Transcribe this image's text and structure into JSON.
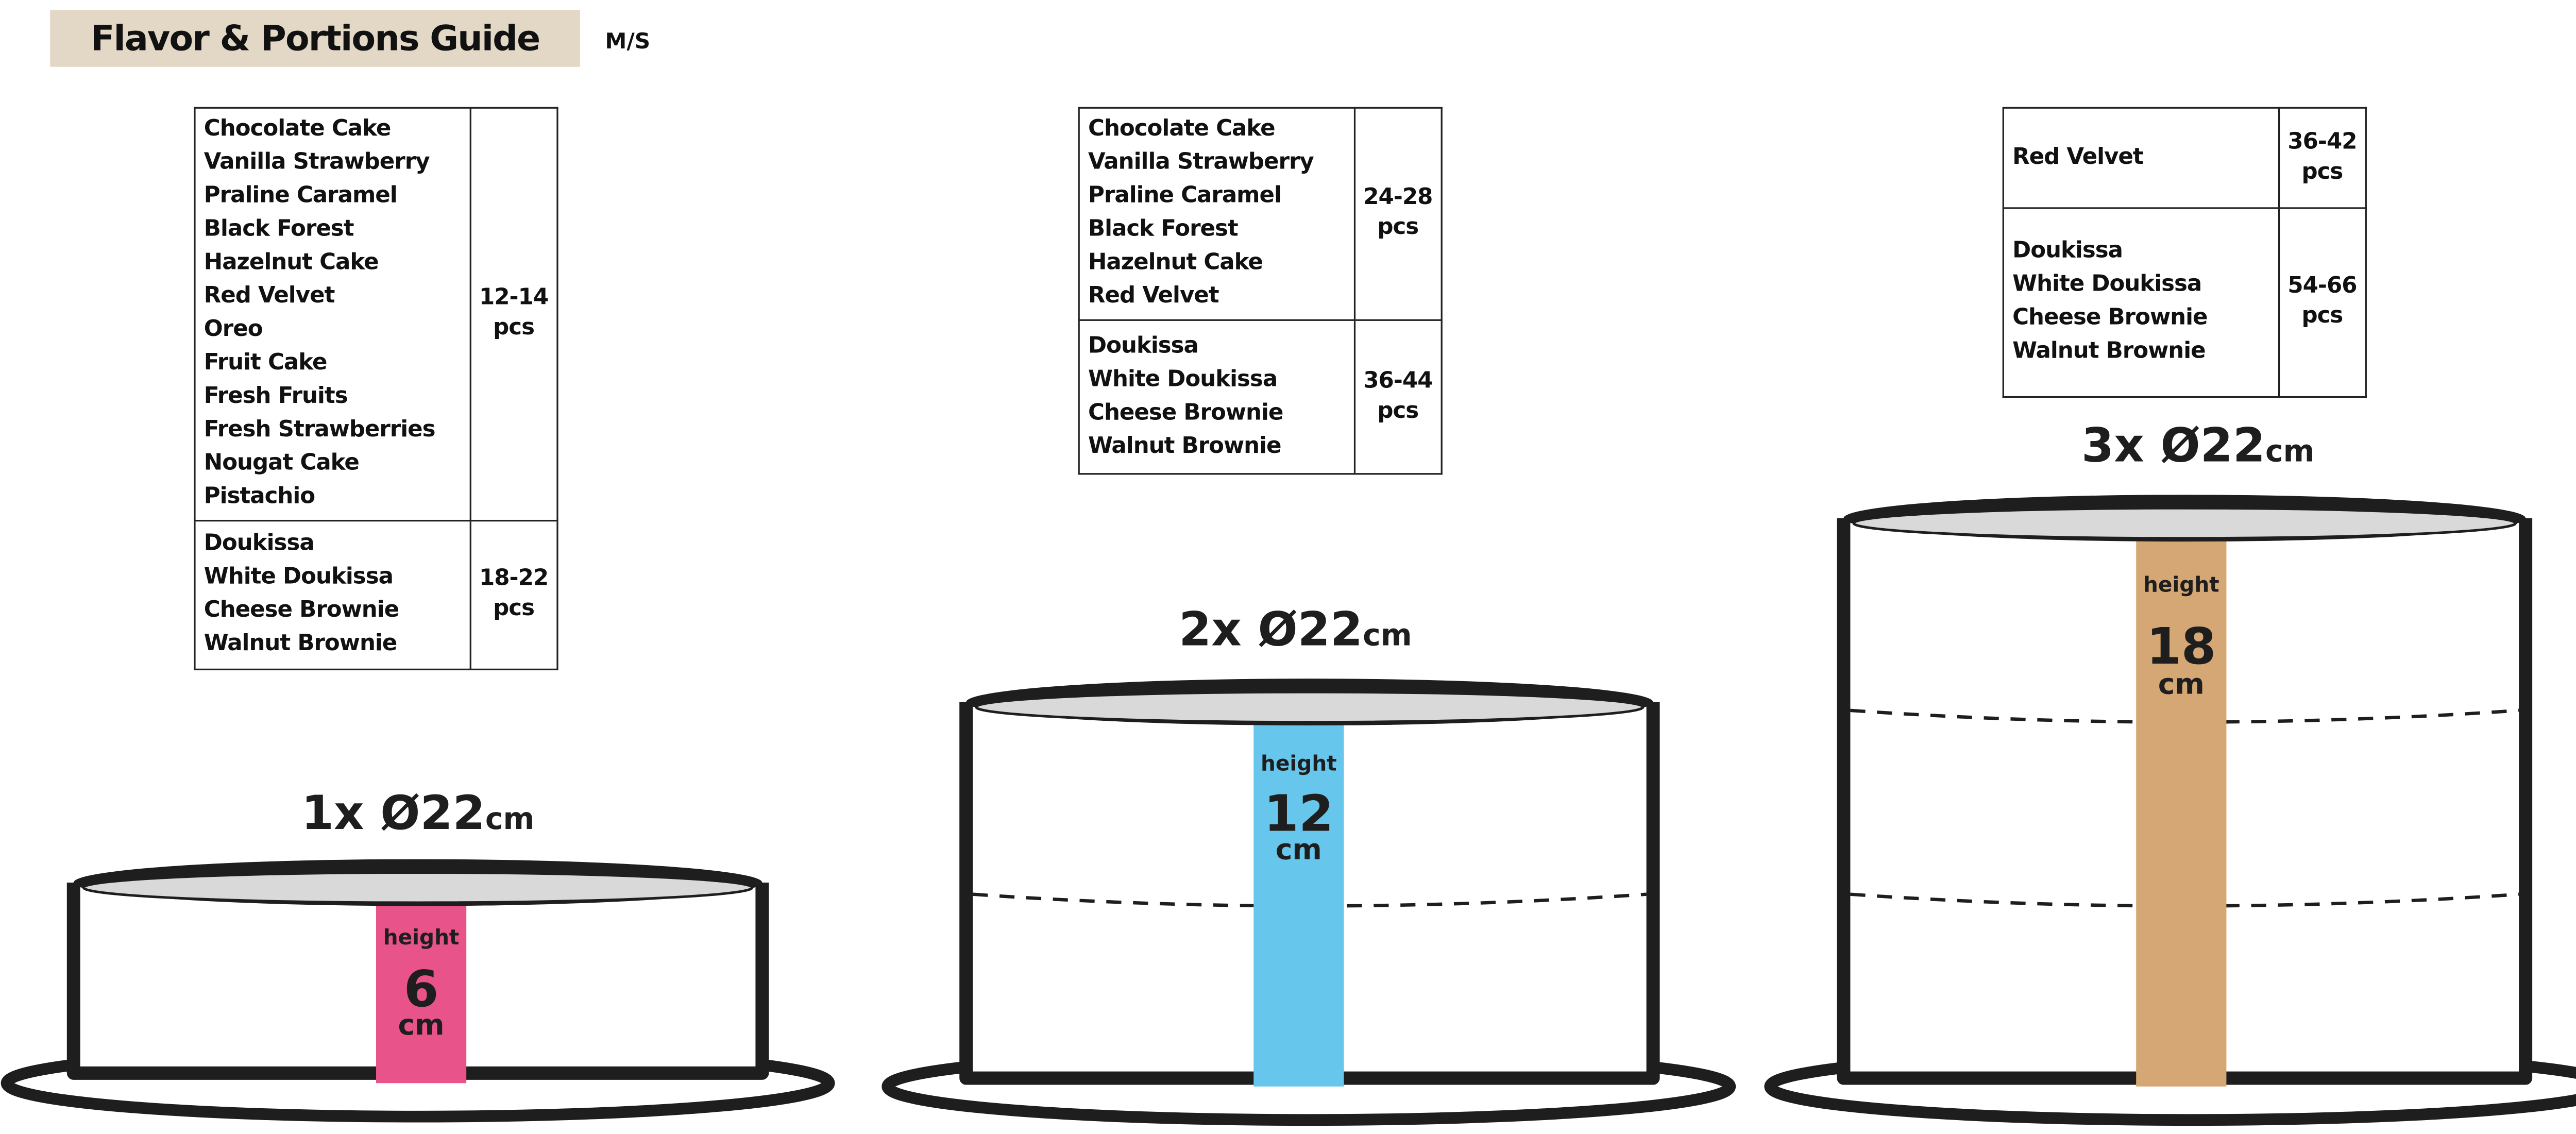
{
  "header": {
    "title": "Flavor & Portions Guide",
    "size_code": "M/S"
  },
  "colors": {
    "title_bg": "#e3d7c6",
    "band_1": "#e8538a",
    "band_2": "#66c6ec",
    "band_3": "#d4a774",
    "cake_outline": "#1e1e1e",
    "cake_top": "#d9d9d9"
  },
  "tables": [
    {
      "rows": [
        {
          "flavors": [
            "Chocolate Cake",
            "Vanilla Strawberry",
            "Praline Caramel",
            "Black Forest",
            "Hazelnut Cake",
            "Red Velvet",
            "Oreo",
            "Fruit Cake",
            "Fresh Fruits",
            "Fresh Strawberries",
            "Nougat Cake",
            "Pistachio"
          ],
          "portions": [
            "12-14",
            "pcs"
          ]
        },
        {
          "flavors": [
            "Doukissa",
            "White Doukissa",
            "Cheese Brownie",
            "Walnut Brownie"
          ],
          "portions": [
            "18-22",
            "pcs"
          ]
        }
      ]
    },
    {
      "rows": [
        {
          "flavors": [
            "Chocolate Cake",
            "Vanilla Strawberry",
            "Praline Caramel",
            "Black Forest",
            "Hazelnut Cake",
            "Red Velvet"
          ],
          "portions": [
            "24-28",
            "pcs"
          ]
        },
        {
          "flavors": [
            "Doukissa",
            "White Doukissa",
            "Cheese Brownie",
            "Walnut Brownie"
          ],
          "portions": [
            "36-44",
            "pcs"
          ]
        }
      ]
    },
    {
      "rows": [
        {
          "flavors": [
            "Red Velvet"
          ],
          "portions": [
            "36-42",
            "pcs"
          ]
        },
        {
          "flavors": [
            "Doukissa",
            "White Doukissa",
            "Cheese Brownie",
            "Walnut Brownie"
          ],
          "portions": [
            "54-66",
            "pcs"
          ]
        }
      ]
    }
  ],
  "cakes": [
    {
      "tiers": "1x",
      "diameter": "Ø22",
      "unit": "cm",
      "height_label": "height",
      "height_value": "6",
      "height_unit": "cm"
    },
    {
      "tiers": "2x",
      "diameter": "Ø22",
      "unit": "cm",
      "height_label": "height",
      "height_value": "12",
      "height_unit": "cm"
    },
    {
      "tiers": "3x",
      "diameter": "Ø22",
      "unit": "cm",
      "height_label": "height",
      "height_value": "18",
      "height_unit": "cm"
    }
  ]
}
